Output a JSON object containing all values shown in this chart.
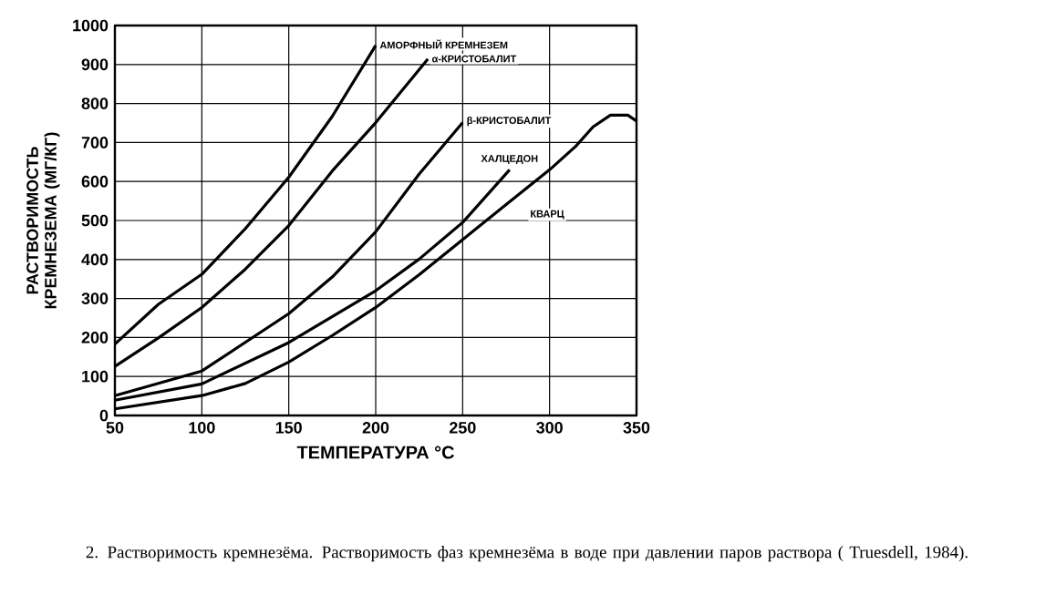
{
  "chart_data": {
    "type": "line",
    "xlabel": "ТЕМПЕРАТУРА  °C",
    "ylabel": "РАСТВОРИМОСТЬ КРЕМНЕЗЕМА (МГ/КГ)",
    "xlim": [
      50,
      350
    ],
    "ylim": [
      0,
      1000
    ],
    "xticks": [
      50,
      100,
      150,
      200,
      250,
      300,
      350
    ],
    "yticks": [
      0,
      100,
      200,
      300,
      400,
      500,
      600,
      700,
      800,
      900,
      1000
    ],
    "grid": true,
    "marker": "none",
    "line_style": "solid",
    "annotations": [
      "2. Растворимость кремнезёма. Растворимость фаз кремнезёма в воде при давлении паров раствора ( Truesdell, 1984)."
    ],
    "series": [
      {
        "name": "АМОРФНЫЙ КРЕМНЕЗЕМ",
        "color": "#000000",
        "x": [
          50,
          75,
          100,
          125,
          150,
          175,
          200
        ],
        "values": [
          183,
          285,
          362,
          479,
          611,
          767,
          949
        ]
      },
      {
        "name": "α-КРИСТОБАЛИТ",
        "color": "#000000",
        "x": [
          50,
          75,
          100,
          125,
          150,
          175,
          200,
          230
        ],
        "values": [
          126,
          199,
          277,
          375,
          487,
          627,
          751,
          914
        ]
      },
      {
        "name": "β-КРИСТОБАЛИТ",
        "color": "#000000",
        "x": [
          50,
          100,
          150,
          175,
          200,
          225,
          250
        ],
        "values": [
          51,
          114,
          261,
          355,
          471,
          619,
          751
        ]
      },
      {
        "name": "ХАЛЦЕДОН",
        "color": "#000000",
        "x": [
          50,
          100,
          150,
          200,
          225,
          250,
          277
        ],
        "values": [
          39,
          81,
          187,
          320,
          401,
          495,
          630
        ]
      },
      {
        "name": "КВАРЦ",
        "color": "#000000",
        "x": [
          50,
          100,
          125,
          150,
          175,
          200,
          225,
          250,
          275,
          300,
          315,
          325,
          335,
          345,
          350
        ],
        "values": [
          17,
          51,
          82,
          137,
          205,
          277,
          361,
          451,
          541,
          630,
          690,
          740,
          770,
          770,
          755
        ]
      }
    ]
  }
}
